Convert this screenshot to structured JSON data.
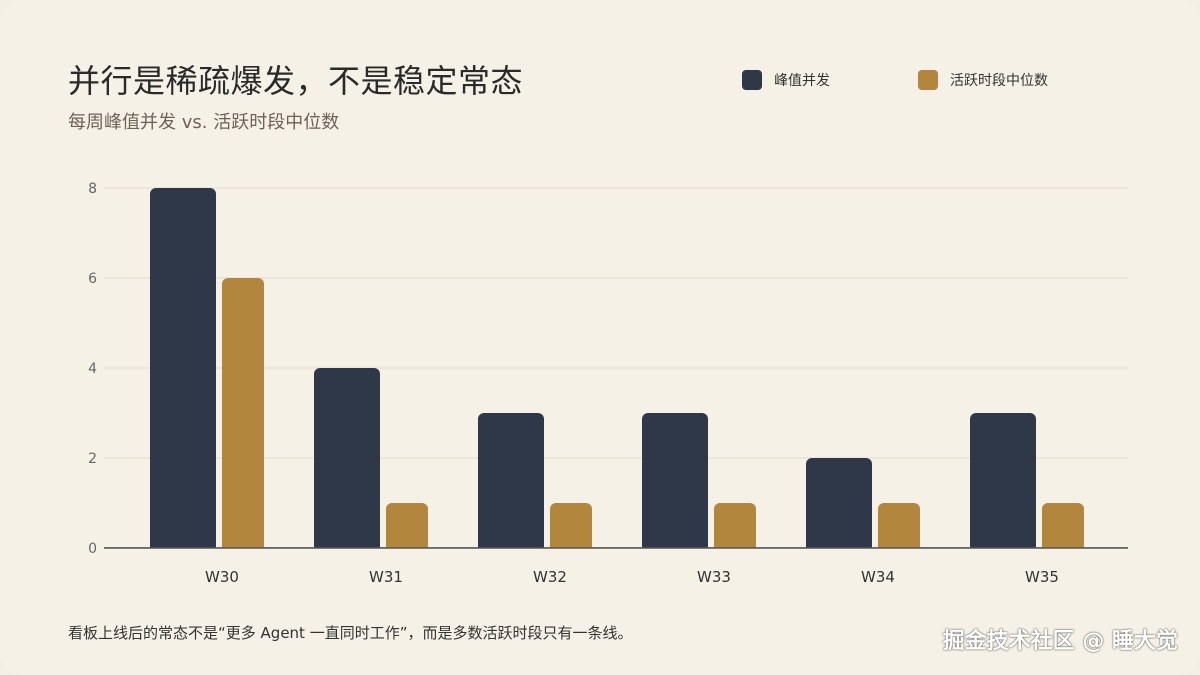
{
  "title": "并行是稀疏爆发，不是稳定常态",
  "subtitle": "每周峰值并发 vs. 活跃时段中位数",
  "footer_note": "看板上线后的常态不是“更多 Agent 一直同时工作”，而是多数活跃时段只有一条线。",
  "watermark": "掘金技术社区 @ 睡大觉",
  "colors": {
    "background": "#f6f1e6",
    "series_peak": "#2f3848",
    "series_median": "#b3863e",
    "grid": "#e2dccf",
    "axis": "#555555"
  },
  "chart_data": {
    "type": "bar",
    "categories": [
      "W30",
      "W31",
      "W32",
      "W33",
      "W34",
      "W35"
    ],
    "series": [
      {
        "name": "峰值并发",
        "values": [
          8,
          4,
          3,
          3,
          2,
          3
        ],
        "color": "#2f3848"
      },
      {
        "name": "活跃时段中位数",
        "values": [
          6,
          1,
          1,
          1,
          1,
          1
        ],
        "color": "#b3863e"
      }
    ],
    "yticks": [
      "0",
      "2",
      "4",
      "6",
      "8"
    ],
    "ylim": [
      0,
      8
    ],
    "grid": true,
    "legend": "top-right"
  }
}
